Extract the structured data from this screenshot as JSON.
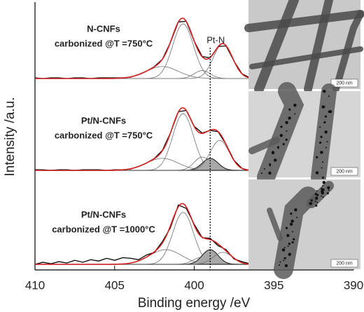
{
  "chart_data": {
    "type": "line",
    "xlabel": "Binding energy /eV",
    "ylabel": "Intensity /a.u.",
    "xlim": [
      410,
      390
    ],
    "xticks": [
      410,
      405,
      400,
      395,
      390
    ],
    "ylim": [
      0,
      100
    ],
    "x": [
      410,
      409.5,
      409,
      408.5,
      408,
      407.5,
      407,
      406.5,
      406,
      405.5,
      405,
      404.5,
      404,
      403.5,
      403,
      402.5,
      402,
      401.5,
      401,
      400.5,
      400,
      399.5,
      399,
      398.5,
      398,
      397.5,
      397,
      396.5
    ],
    "annotation": {
      "text": "Pt-N",
      "x": 399
    },
    "panels": [
      {
        "label": [
          "N-CNFs",
          "carbonized @T =750°C"
        ],
        "color": "#000000",
        "fit_color": "#d42020",
        "values": [
          1,
          0,
          1,
          1,
          0,
          1,
          1,
          0,
          1,
          1,
          1,
          1,
          2,
          6,
          11,
          18,
          29,
          54,
          85,
          86,
          56,
          33,
          31,
          48,
          49,
          26,
          7,
          1
        ],
        "components": [
          {
            "center": 402,
            "height": 18,
            "width": 1.0,
            "color": "#707070"
          },
          {
            "center": 400.7,
            "height": 82,
            "width": 0.65,
            "color": "#707070"
          },
          {
            "center": 399.5,
            "height": 12,
            "width": 0.5,
            "color": "#707070"
          },
          {
            "center": 398.2,
            "height": 52,
            "width": 0.6,
            "color": "#707070"
          }
        ],
        "image_label": "200 nm"
      },
      {
        "label": [
          "Pt/N-CNFs",
          "carbonized @T =750°C"
        ],
        "color": "#000000",
        "fit_color": "#d42020",
        "values": [
          1,
          1,
          0,
          1,
          1,
          0,
          1,
          1,
          1,
          0,
          1,
          1,
          2,
          6,
          11,
          18,
          30,
          56,
          88,
          90,
          66,
          56,
          60,
          58,
          39,
          15,
          3,
          0
        ],
        "components": [
          {
            "center": 402,
            "height": 18,
            "width": 1.0,
            "color": "#707070"
          },
          {
            "center": 400.7,
            "height": 85,
            "width": 0.65,
            "color": "#707070"
          },
          {
            "center": 399.5,
            "height": 20,
            "width": 0.5,
            "color": "#707070"
          },
          {
            "center": 399,
            "height": 18,
            "width": 0.5,
            "color": "#303030",
            "fill": "#a8a8a8"
          },
          {
            "center": 398.4,
            "height": 45,
            "width": 0.6,
            "color": "#707070"
          }
        ],
        "image_label": "200 nm"
      },
      {
        "label": [
          "Pt/N-CNFs",
          "carbonized @T =1000°C"
        ],
        "color": "#000000",
        "fit_color": "#d42020",
        "values": [
          0,
          3,
          1,
          4,
          2,
          6,
          3,
          7,
          5,
          9,
          6,
          10,
          9,
          7,
          14,
          18,
          34,
          55,
          89,
          84,
          60,
          40,
          39,
          28,
          22,
          8,
          4,
          1
        ],
        "components": [
          {
            "center": 401.8,
            "height": 22,
            "width": 1.0,
            "color": "#707070"
          },
          {
            "center": 400.7,
            "height": 78,
            "width": 0.65,
            "color": "#707070"
          },
          {
            "center": 399.6,
            "height": 10,
            "width": 0.5,
            "color": "#707070"
          },
          {
            "center": 399,
            "height": 22,
            "width": 0.5,
            "color": "#303030",
            "fill": "#a8a8a8"
          },
          {
            "center": 398.2,
            "height": 18,
            "width": 0.6,
            "color": "#707070"
          }
        ],
        "image_label": "200 nm"
      }
    ]
  }
}
